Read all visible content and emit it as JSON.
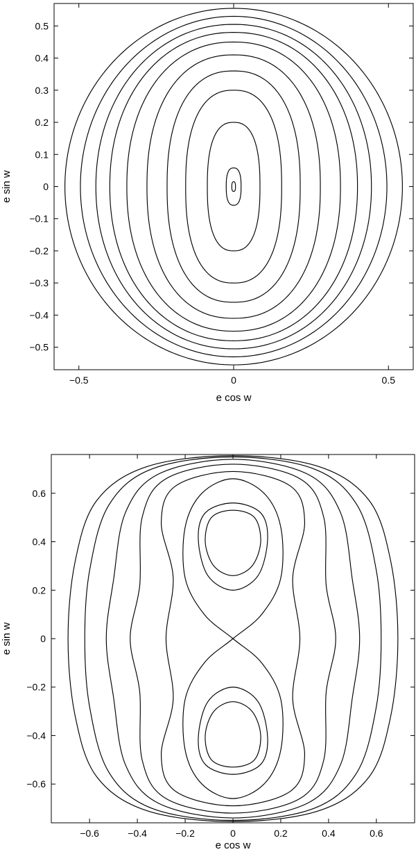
{
  "chart_data": [
    {
      "type": "line",
      "title": "",
      "xlabel": "e cos w",
      "ylabel": "e sin w",
      "xlim": [
        -0.58,
        0.58
      ],
      "ylim": [
        -0.57,
        0.57
      ],
      "xticks": [
        -0.5,
        0,
        0.5
      ],
      "xtick_labels": [
        "−0.5",
        "0",
        "0.5"
      ],
      "yticks": [
        0.5,
        0.4,
        0.3,
        0.2,
        0.1,
        0,
        -0.1,
        -0.2,
        -0.3,
        -0.4,
        -0.5
      ],
      "ytick_labels": [
        "0.5",
        "0.4",
        "0.3",
        "0.2",
        "0.1",
        "0",
        "−0.1",
        "−0.2",
        "−0.3",
        "−0.4",
        "−0.5"
      ],
      "grid": false,
      "series": [
        {
          "x_halfwidth": 0.006,
          "y_halfheight": 0.015
        },
        {
          "x_halfwidth": 0.024,
          "y_halfheight": 0.058
        },
        {
          "x_halfwidth": 0.085,
          "y_halfheight": 0.2
        },
        {
          "x_halfwidth": 0.155,
          "y_halfheight": 0.3
        },
        {
          "x_halfwidth": 0.215,
          "y_halfheight": 0.36
        },
        {
          "x_halfwidth": 0.28,
          "y_halfheight": 0.41
        },
        {
          "x_halfwidth": 0.345,
          "y_halfheight": 0.45
        },
        {
          "x_halfwidth": 0.4,
          "y_halfheight": 0.48
        },
        {
          "x_halfwidth": 0.445,
          "y_halfheight": 0.505
        },
        {
          "x_halfwidth": 0.495,
          "y_halfheight": 0.53
        },
        {
          "x_halfwidth": 0.545,
          "y_halfheight": 0.555
        }
      ]
    },
    {
      "type": "line",
      "title": "",
      "xlabel": "e cos w",
      "ylabel": "e sin w",
      "xlim": [
        -0.76,
        0.76
      ],
      "ylim": [
        -0.76,
        0.76
      ],
      "xticks": [
        -0.6,
        -0.4,
        -0.2,
        0,
        0.2,
        0.4,
        0.6
      ],
      "xtick_labels": [
        "−0.6",
        "−0.4",
        "−0.2",
        "0",
        "0.2",
        "0.4",
        "0.6"
      ],
      "yticks": [
        0.6,
        0.4,
        0.2,
        0,
        -0.2,
        -0.4,
        -0.6
      ],
      "ytick_labels": [
        "0.6",
        "0.4",
        "0.2",
        "0",
        "−0.2",
        "−0.4",
        "−0.6"
      ],
      "grid": false,
      "closed_curves": [
        {
          "x": [
            0,
            0.08,
            0.116,
            0.09,
            0,
            -0.09,
            -0.116,
            -0.08
          ],
          "y": [
            0.26,
            0.3,
            0.4,
            0.5,
            0.53,
            0.5,
            0.4,
            0.3
          ]
        },
        {
          "x": [
            0,
            0.105,
            0.145,
            0.115,
            0,
            -0.115,
            -0.145,
            -0.105
          ],
          "y": [
            0.2,
            0.26,
            0.41,
            0.52,
            0.56,
            0.52,
            0.41,
            0.26
          ]
        },
        {
          "x": [
            0.12,
            0.2,
            0.2,
            0.13,
            0,
            -0.13,
            -0.2,
            -0.2,
            -0.12,
            0,
            0.12,
            0.2,
            0.2,
            0.13,
            0,
            -0.13,
            -0.2,
            -0.2,
            -0.12,
            0
          ],
          "y": [
            0.1,
            0.25,
            0.46,
            0.6,
            0.66,
            0.6,
            0.46,
            0.25,
            0.1,
            0,
            -0.1,
            -0.25,
            -0.46,
            -0.6,
            -0.66,
            -0.6,
            -0.46,
            -0.25,
            -0.1,
            0
          ]
        },
        {
          "x": [
            0.25,
            0.3,
            0.24,
            0,
            -0.24,
            -0.3,
            -0.25,
            -0.28,
            -0.25,
            -0.3,
            -0.24,
            0,
            0.24,
            0.3,
            0.25,
            0.28
          ],
          "y": [
            0.25,
            0.48,
            0.63,
            0.69,
            0.63,
            0.48,
            0.25,
            0,
            -0.25,
            -0.48,
            -0.63,
            -0.69,
            -0.63,
            -0.48,
            -0.25,
            0
          ]
        },
        {
          "x": [
            0.39,
            0.38,
            0.28,
            0,
            -0.28,
            -0.38,
            -0.39,
            -0.43,
            -0.39,
            -0.38,
            -0.28,
            0,
            0.28,
            0.38,
            0.39,
            0.43
          ],
          "y": [
            0.22,
            0.5,
            0.66,
            0.72,
            0.66,
            0.5,
            0.22,
            0,
            -0.22,
            -0.5,
            -0.66,
            -0.72,
            -0.66,
            -0.5,
            -0.22,
            0
          ]
        },
        {
          "x": [
            0.5,
            0.45,
            0.31,
            0,
            -0.31,
            -0.45,
            -0.5,
            -0.53,
            -0.5,
            -0.45,
            -0.31,
            0,
            0.31,
            0.45,
            0.5,
            0.53
          ],
          "y": [
            0.24,
            0.52,
            0.68,
            0.74,
            0.68,
            0.52,
            0.24,
            0,
            -0.24,
            -0.52,
            -0.68,
            -0.74,
            -0.68,
            -0.52,
            -0.24,
            0
          ]
        },
        {
          "x": [
            0.6,
            0.52,
            0.34,
            0,
            -0.34,
            -0.52,
            -0.6,
            -0.62,
            -0.6,
            -0.52,
            -0.34,
            0,
            0.34,
            0.52,
            0.6,
            0.62
          ],
          "y": [
            0.28,
            0.55,
            0.7,
            0.75,
            0.7,
            0.55,
            0.28,
            0,
            -0.28,
            -0.55,
            -0.7,
            -0.75,
            -0.7,
            -0.55,
            -0.28,
            0
          ]
        },
        {
          "x": [
            0.66,
            0.57,
            0.36,
            0,
            -0.36,
            -0.57,
            -0.66,
            -0.69,
            -0.66,
            -0.57,
            -0.36,
            0,
            0.36,
            0.57,
            0.66,
            0.69
          ],
          "y": [
            0.32,
            0.57,
            0.71,
            0.755,
            0.71,
            0.57,
            0.32,
            0,
            -0.32,
            -0.57,
            -0.71,
            -0.755,
            -0.71,
            -0.57,
            -0.32,
            0
          ]
        }
      ],
      "mirror_lower_lobes": true
    }
  ]
}
